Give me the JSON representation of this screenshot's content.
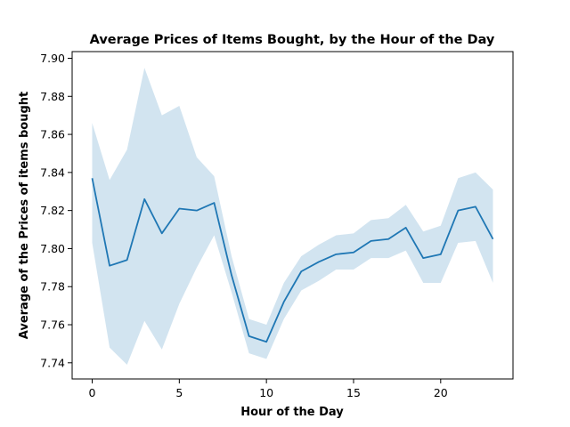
{
  "chart_data": {
    "type": "line",
    "title": "Average Prices of Items Bought, by the Hour of the Day",
    "xlabel": "Hour of the Day",
    "ylabel": "Average of the Prices of items bought",
    "xlim": [
      -1.15,
      24.15
    ],
    "ylim": [
      7.7315,
      7.9035
    ],
    "xticks": [
      0,
      5,
      10,
      15,
      20
    ],
    "yticks": [
      7.74,
      7.76,
      7.78,
      7.8,
      7.82,
      7.84,
      7.86,
      7.88,
      7.9
    ],
    "ytick_labels": [
      "7.74",
      "7.76",
      "7.78",
      "7.80",
      "7.82",
      "7.84",
      "7.86",
      "7.88",
      "7.90"
    ],
    "grid": false,
    "legend": "none",
    "line_color": "#1f77b4",
    "band_color": "#1f77b4",
    "x": [
      0,
      1,
      2,
      3,
      4,
      5,
      6,
      7,
      8,
      9,
      10,
      11,
      12,
      13,
      14,
      15,
      16,
      17,
      18,
      19,
      20,
      21,
      22,
      23
    ],
    "y": [
      7.837,
      7.791,
      7.794,
      7.826,
      7.808,
      7.821,
      7.82,
      7.824,
      7.786,
      7.754,
      7.751,
      7.772,
      7.788,
      7.793,
      7.797,
      7.798,
      7.804,
      7.805,
      7.811,
      7.795,
      7.797,
      7.82,
      7.822,
      7.805
    ],
    "ci_lower": [
      7.803,
      7.748,
      7.739,
      7.762,
      7.747,
      7.771,
      7.79,
      7.807,
      7.777,
      7.745,
      7.742,
      7.763,
      7.778,
      7.783,
      7.789,
      7.789,
      7.795,
      7.795,
      7.799,
      7.782,
      7.782,
      7.803,
      7.804,
      7.782
    ],
    "ci_upper": [
      7.866,
      7.836,
      7.852,
      7.895,
      7.87,
      7.875,
      7.848,
      7.838,
      7.796,
      7.763,
      7.76,
      7.782,
      7.796,
      7.802,
      7.807,
      7.808,
      7.815,
      7.816,
      7.823,
      7.809,
      7.812,
      7.837,
      7.84,
      7.831
    ]
  }
}
